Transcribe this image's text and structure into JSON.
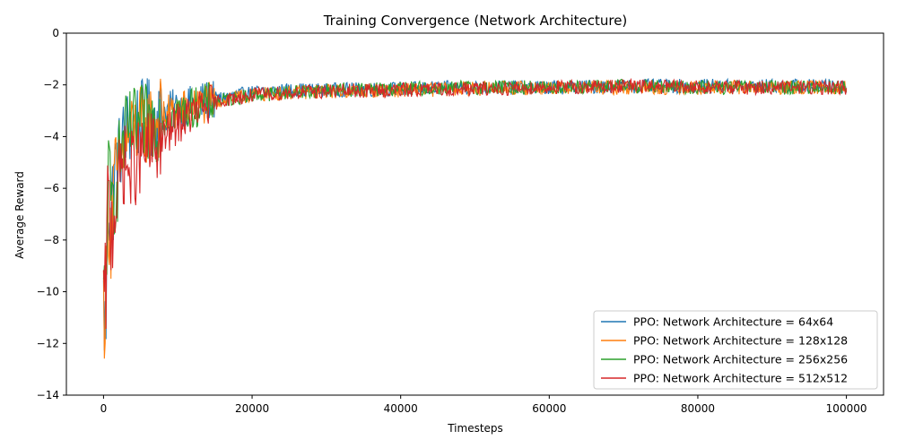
{
  "chart_data": {
    "type": "line",
    "title": "Training Convergence (Network Architecture)",
    "xlabel": "Timesteps",
    "ylabel": "Average Reward",
    "xlim": [
      -5000,
      105000
    ],
    "ylim": [
      -14,
      0
    ],
    "xticks": [
      0,
      20000,
      40000,
      60000,
      80000,
      100000
    ],
    "xtick_labels": [
      "0",
      "20000",
      "40000",
      "60000",
      "80000",
      "100000"
    ],
    "yticks": [
      0,
      -2,
      -4,
      -6,
      -8,
      -10,
      -12,
      -14
    ],
    "ytick_labels": [
      "0",
      "−2",
      "−4",
      "−6",
      "−8",
      "−10",
      "−12",
      "−14"
    ],
    "grid": false,
    "legend_position": "lower-right",
    "series": [
      {
        "name": "PPO: Network Architecture = 64x64",
        "color": "#1f77b4",
        "x": [
          0,
          300,
          600,
          1000,
          1500,
          2000,
          2500,
          3000,
          3500,
          4000,
          5000,
          6000,
          7000,
          8000,
          9000,
          10000,
          12000,
          14000,
          16000,
          18000,
          20000,
          25000,
          30000,
          40000,
          50000,
          60000,
          70000,
          80000,
          90000,
          100000
        ],
        "y": [
          -10.5,
          -11.8,
          -6.0,
          -7.2,
          -5.5,
          -4.8,
          -4.2,
          -3.8,
          -3.6,
          -3.5,
          -3.4,
          -3.3,
          -3.2,
          -3.1,
          -3.0,
          -2.9,
          -2.8,
          -2.6,
          -2.5,
          -2.4,
          -2.3,
          -2.2,
          -2.2,
          -2.15,
          -2.1,
          -2.1,
          -2.05,
          -2.05,
          -2.05,
          -2.05
        ]
      },
      {
        "name": "PPO: Network Architecture = 128x128",
        "color": "#ff7f0e",
        "x": [
          0,
          300,
          600,
          1000,
          1500,
          2000,
          2500,
          3000,
          3500,
          4000,
          5000,
          6000,
          7000,
          8000,
          9000,
          10000,
          12000,
          14000,
          16000,
          18000,
          20000,
          25000,
          30000,
          40000,
          50000,
          60000,
          70000,
          80000,
          90000,
          100000
        ],
        "y": [
          -10.3,
          -10.6,
          -6.5,
          -7.5,
          -6.0,
          -5.2,
          -4.6,
          -4.2,
          -4.0,
          -3.8,
          -3.6,
          -3.5,
          -3.4,
          -3.2,
          -3.1,
          -3.0,
          -2.9,
          -2.7,
          -2.6,
          -2.5,
          -2.4,
          -2.3,
          -2.25,
          -2.2,
          -2.15,
          -2.1,
          -2.1,
          -2.1,
          -2.1,
          -2.1
        ]
      },
      {
        "name": "PPO: Network Architecture = 256x256",
        "color": "#2ca02c",
        "x": [
          0,
          300,
          600,
          1000,
          1500,
          2000,
          2500,
          3000,
          3500,
          4000,
          5000,
          6000,
          7000,
          8000,
          9000,
          10000,
          12000,
          14000,
          16000,
          18000,
          20000,
          25000,
          30000,
          40000,
          50000,
          60000,
          70000,
          80000,
          90000,
          100000
        ],
        "y": [
          -10.8,
          -9.5,
          -5.5,
          -7.0,
          -5.8,
          -5.0,
          -4.4,
          -4.0,
          -3.8,
          -3.7,
          -3.6,
          -3.5,
          -3.4,
          -3.3,
          -3.2,
          -3.1,
          -2.9,
          -2.7,
          -2.6,
          -2.5,
          -2.4,
          -2.3,
          -2.2,
          -2.15,
          -2.1,
          -2.1,
          -2.05,
          -2.1,
          -2.1,
          -2.1
        ]
      },
      {
        "name": "PPO: Network Architecture = 512x512",
        "color": "#d62728",
        "x": [
          0,
          300,
          600,
          1000,
          1500,
          2000,
          2500,
          3000,
          3500,
          4000,
          5000,
          6000,
          7000,
          8000,
          9000,
          10000,
          12000,
          14000,
          16000,
          18000,
          20000,
          25000,
          30000,
          40000,
          50000,
          60000,
          70000,
          80000,
          90000,
          100000
        ],
        "y": [
          -10.6,
          -10.2,
          -6.2,
          -7.8,
          -6.5,
          -5.8,
          -5.2,
          -5.0,
          -5.5,
          -5.2,
          -4.8,
          -4.6,
          -4.4,
          -4.1,
          -3.8,
          -3.5,
          -3.1,
          -2.8,
          -2.6,
          -2.5,
          -2.4,
          -2.3,
          -2.25,
          -2.2,
          -2.15,
          -2.1,
          -2.05,
          -2.1,
          -2.1,
          -2.1
        ]
      }
    ]
  }
}
